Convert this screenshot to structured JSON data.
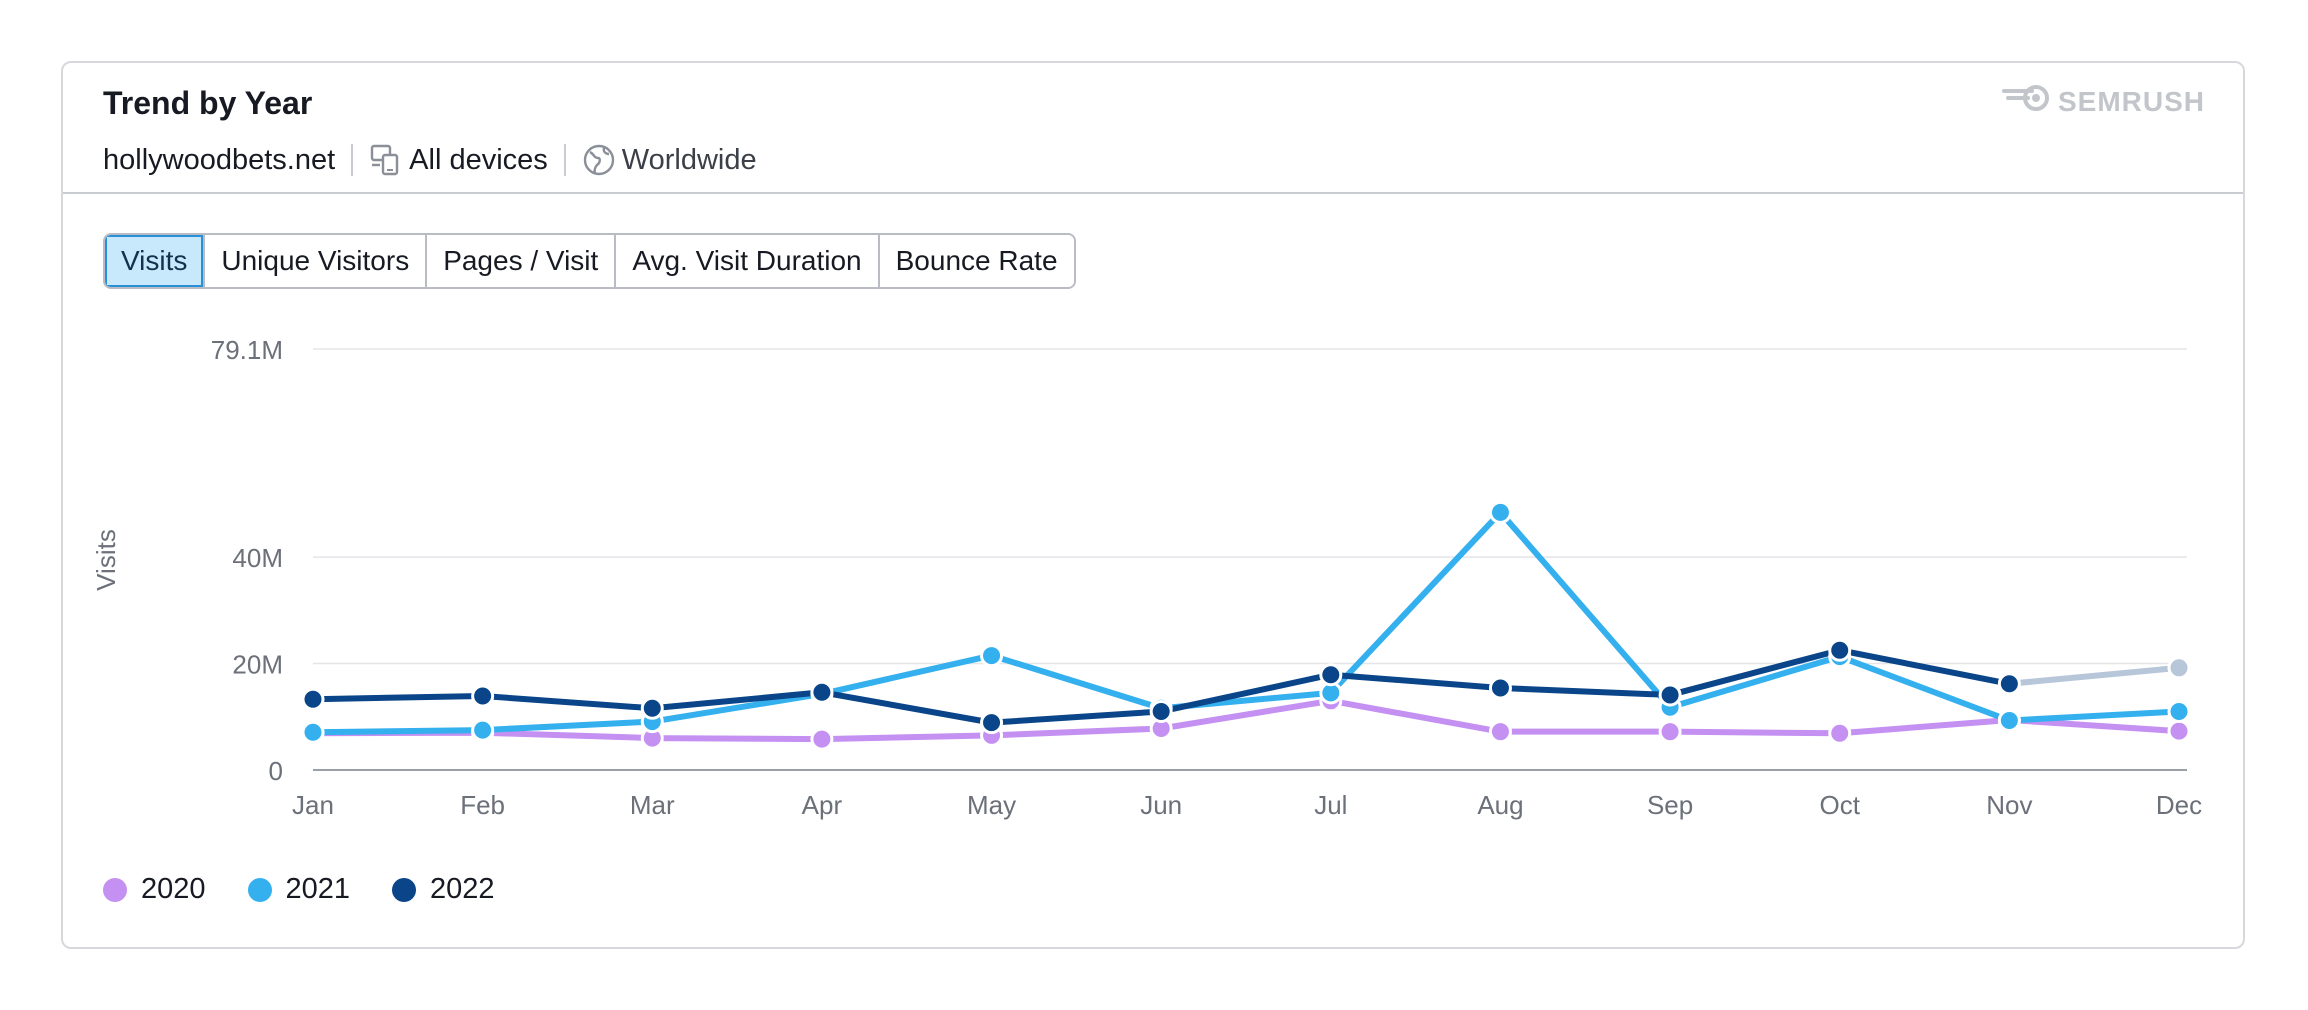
{
  "header": {
    "title": "Trend by Year",
    "domain": "hollywoodbets.net",
    "devices": "All devices",
    "region": "Worldwide",
    "brand": "SEMRUSH",
    "devices_icon": "devices-icon",
    "region_icon": "globe-icon",
    "brand_icon": "semrush-logo-icon"
  },
  "tabs": [
    {
      "label": "Visits",
      "active": true
    },
    {
      "label": "Unique Visitors",
      "active": false
    },
    {
      "label": "Pages / Visit",
      "active": false
    },
    {
      "label": "Avg. Visit Duration",
      "active": false
    },
    {
      "label": "Bounce Rate",
      "active": false
    }
  ],
  "chart_data": {
    "type": "line",
    "ylabel": "Visits",
    "xlabel": "",
    "ylim": [
      0,
      79.1
    ],
    "yticks": [
      {
        "value": 0,
        "label": "0"
      },
      {
        "value": 20,
        "label": "20M"
      },
      {
        "value": 40,
        "label": "40M"
      },
      {
        "value": 79.1,
        "label": "79.1M"
      }
    ],
    "categories": [
      "Jan",
      "Feb",
      "Mar",
      "Apr",
      "May",
      "Jun",
      "Jul",
      "Aug",
      "Sep",
      "Oct",
      "Nov",
      "Dec"
    ],
    "grid": true,
    "legend_position": "bottom-left",
    "series": [
      {
        "name": "2020",
        "color": "#c490f2",
        "values": [
          6.9,
          7.0,
          6.0,
          5.8,
          6.5,
          7.8,
          13.0,
          7.2,
          7.2,
          6.9,
          9.4,
          7.3
        ]
      },
      {
        "name": "2021",
        "color": "#35b0ee",
        "values": [
          7.1,
          7.5,
          9.1,
          14.3,
          21.5,
          11.6,
          14.5,
          48.4,
          11.8,
          21.3,
          9.3,
          11.0
        ]
      },
      {
        "name": "2022",
        "color": "#0a4589",
        "values": [
          13.3,
          13.9,
          11.6,
          14.6,
          8.9,
          11.0,
          17.9,
          15.4,
          14.1,
          22.5,
          16.2,
          null
        ]
      }
    ],
    "projection": {
      "from": "Nov",
      "to": "Dec",
      "color": "#b7c6d9",
      "values": [
        16.2,
        19.2
      ]
    }
  }
}
